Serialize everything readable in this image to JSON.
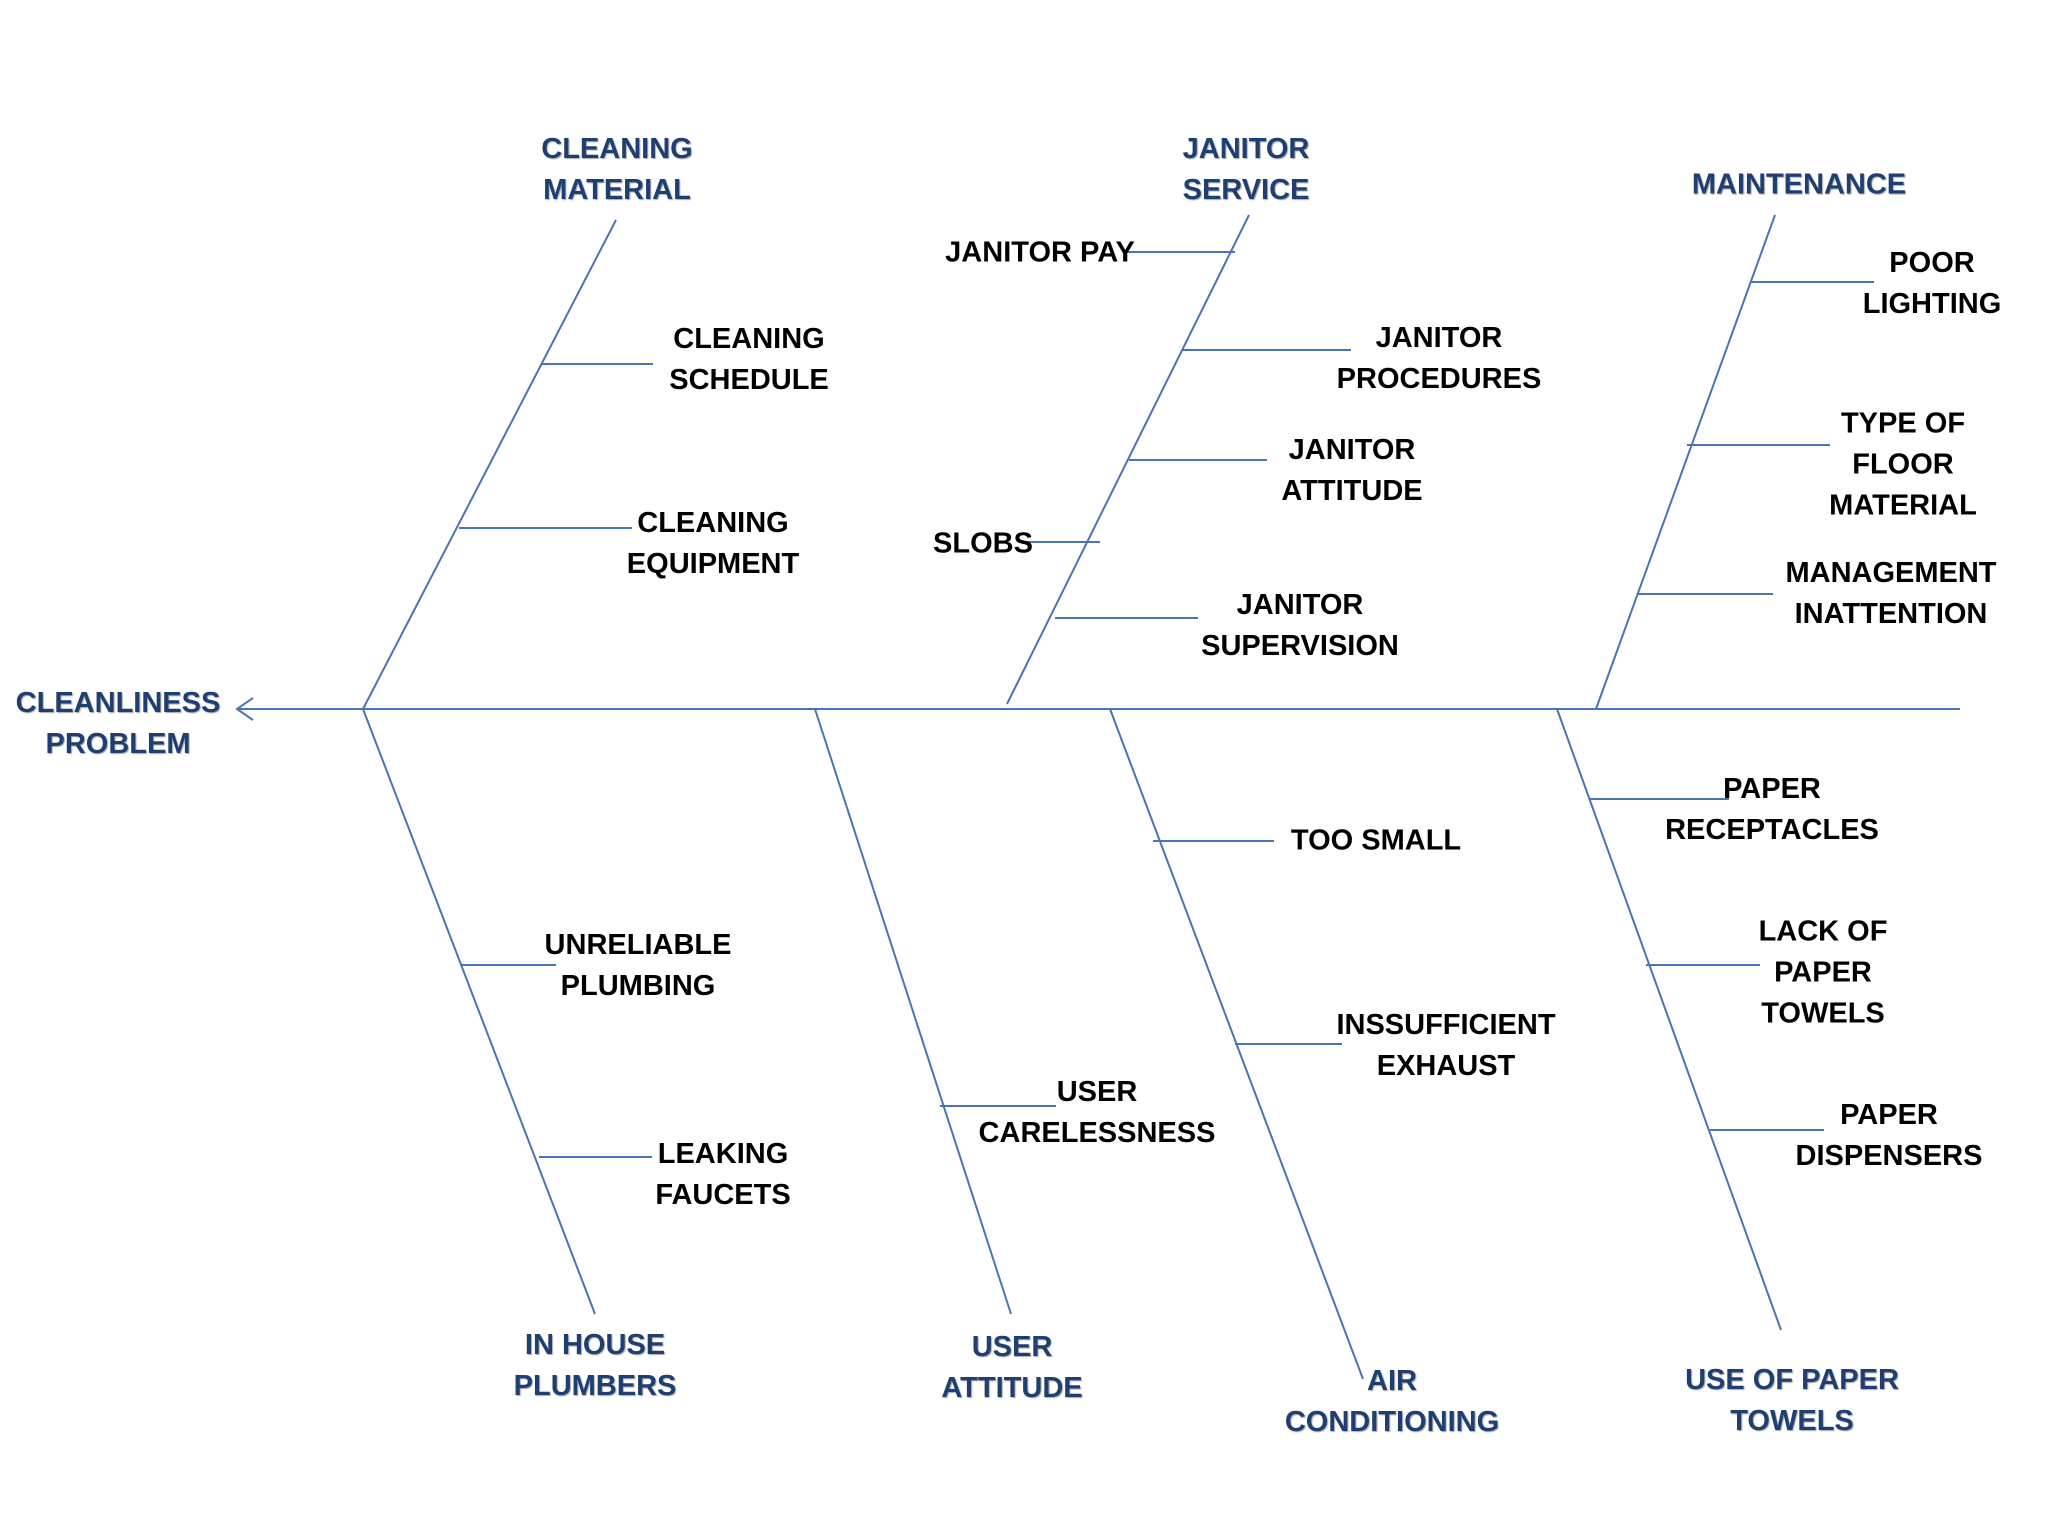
{
  "effect": "CLEANLINESS\nPROBLEM",
  "colors": {
    "line": "#4a74b3",
    "category": "#1f3f73",
    "cause": "#000000"
  },
  "categories": {
    "cleaning_material": {
      "title": "CLEANING\nMATERIAL",
      "causes": [
        "CLEANING\nSCHEDULE",
        "CLEANING\nEQUIPMENT"
      ]
    },
    "janitor_service": {
      "title": "JANITOR\nSERVICE",
      "causes": [
        "JANITOR PAY",
        "JANITOR\nPROCEDURES",
        "JANITOR\nATTITUDE",
        "SLOBS",
        "JANITOR\nSUPERVISION"
      ]
    },
    "maintenance": {
      "title": "MAINTENANCE",
      "causes": [
        "POOR\nLIGHTING",
        "TYPE OF\nFLOOR\nMATERIAL",
        "MANAGEMENT\nINATTENTION"
      ]
    },
    "in_house_plumbers": {
      "title": "IN HOUSE\nPLUMBERS",
      "causes": [
        "UNRELIABLE\nPLUMBING",
        "LEAKING\nFAUCETS"
      ]
    },
    "user_attitude": {
      "title": "USER\nATTITUDE",
      "causes": [
        "USER\nCARELESSNESS"
      ]
    },
    "air_conditioning": {
      "title": "AIR\nCONDITIONING",
      "causes": [
        "TOO SMALL",
        "INSSUFFICIENT\nEXHAUST"
      ]
    },
    "use_of_paper_towels": {
      "title": "USE OF PAPER\nTOWELS",
      "causes": [
        "PAPER\nRECEPTACLES",
        "LACK OF\nPAPER\nTOWELS",
        "PAPER\nDISPENSERS"
      ]
    }
  }
}
